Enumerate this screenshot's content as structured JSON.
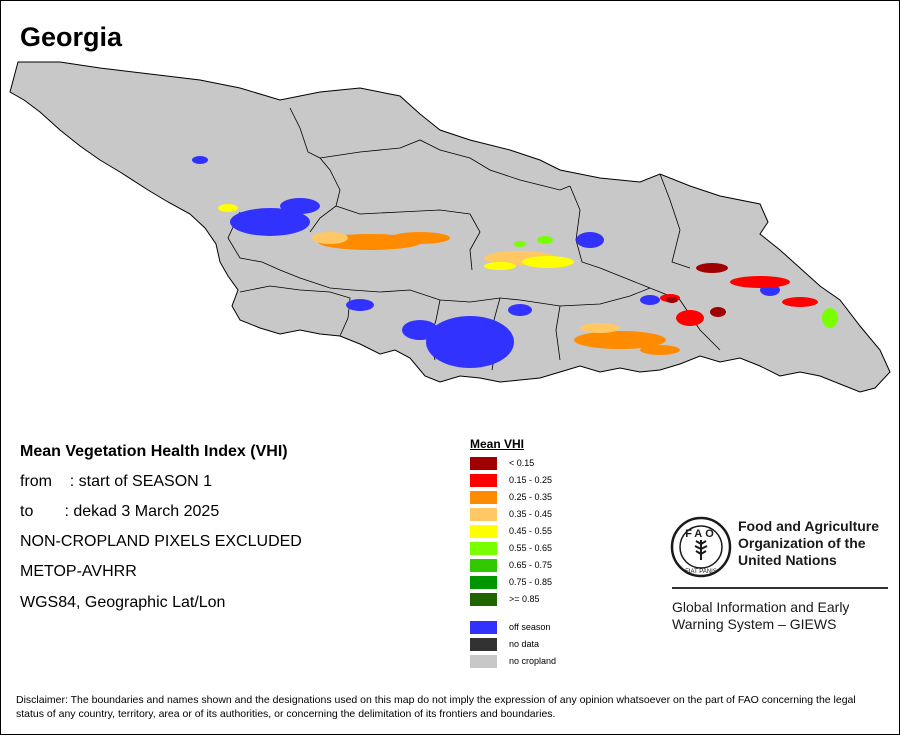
{
  "title": "Georgia",
  "info": {
    "heading": "Mean Vegetation Health Index (VHI)",
    "from_line": "from    : start of SEASON 1",
    "to_line": "to       : dekad 3 March 2025",
    "exclusion": "NON-CROPLAND PIXELS EXCLUDED",
    "sensor": "METOP-AVHRR",
    "projection": "WGS84, Geographic Lat/Lon"
  },
  "legend": {
    "title": "Mean VHI",
    "classes": [
      {
        "label": "< 0.15",
        "color": "#a00000"
      },
      {
        "label": "0.15 - 0.25",
        "color": "#ff0000"
      },
      {
        "label": "0.25 - 0.35",
        "color": "#ff8c00"
      },
      {
        "label": "0.35 - 0.45",
        "color": "#ffc864"
      },
      {
        "label": "0.45 - 0.55",
        "color": "#ffff00"
      },
      {
        "label": "0.55 - 0.65",
        "color": "#78ff00"
      },
      {
        "label": "0.65 - 0.75",
        "color": "#32c800"
      },
      {
        "label": "0.75 - 0.85",
        "color": "#009600"
      },
      {
        "label": ">= 0.85",
        "color": "#1e6400"
      }
    ],
    "special": [
      {
        "label": "off season",
        "color": "#3232ff"
      },
      {
        "label": "no data",
        "color": "#323232"
      },
      {
        "label": "no cropland",
        "color": "#c8c8c8"
      }
    ]
  },
  "organization": {
    "name": "Food and Agriculture\nOrganization of the\nUnited Nations",
    "logo_letters": "FAO",
    "logo_motto": "FIAT PANIS",
    "system": "Global Information and Early\nWarning System – GIEWS"
  },
  "disclaimer": "Disclaimer: The boundaries and names shown and the designations used on this map do not imply the expression of any opinion whatsoever on the part of FAO concerning the legal status of any country, territory, area or of its authorities, or concerning the delimitation of its frontiers and boundaries.",
  "map_colors": {
    "land": "#c8c8c8",
    "boundary": "#000000",
    "off_season": "#3232ff"
  }
}
